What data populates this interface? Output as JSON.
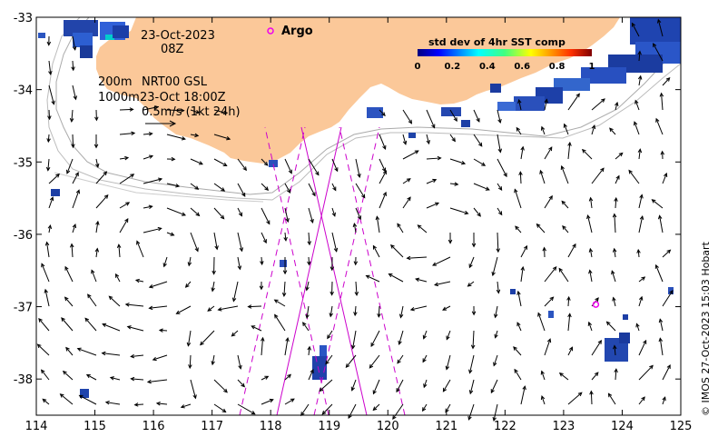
{
  "map": {
    "date": "23-Oct-2023",
    "hour": "08Z",
    "depth_line_1": "200m",
    "depth_line_2": "1000m",
    "product": "NRT00 GSL",
    "product_time": "23-Oct 18:00Z",
    "scale_label": "0.5m/s (1kt 24h)",
    "argo_label": "Argo",
    "credit": "© IMOS 27-Oct-2023 15:03 Hobart",
    "land_color": "#fbc899",
    "argo_color": "#ee00ee",
    "track_color": "#cc00cc"
  },
  "legend": {
    "title": "std dev of 4hr SST comp",
    "ticks": [
      "0",
      "0.2",
      "0.4",
      "0.6",
      "0.8",
      "1"
    ]
  },
  "axes": {
    "lon_ticks": [
      "114",
      "115",
      "116",
      "117",
      "118",
      "119",
      "120",
      "121",
      "122",
      "123",
      "124",
      "125"
    ],
    "lat_ticks": [
      "-33",
      "-34",
      "-35",
      "-36",
      "-37",
      "-38"
    ],
    "lon_range": [
      114,
      125
    ],
    "lat_range": [
      -38.5,
      -33
    ]
  },
  "argo_float": {
    "lon": 123.55,
    "lat": -36.97
  }
}
